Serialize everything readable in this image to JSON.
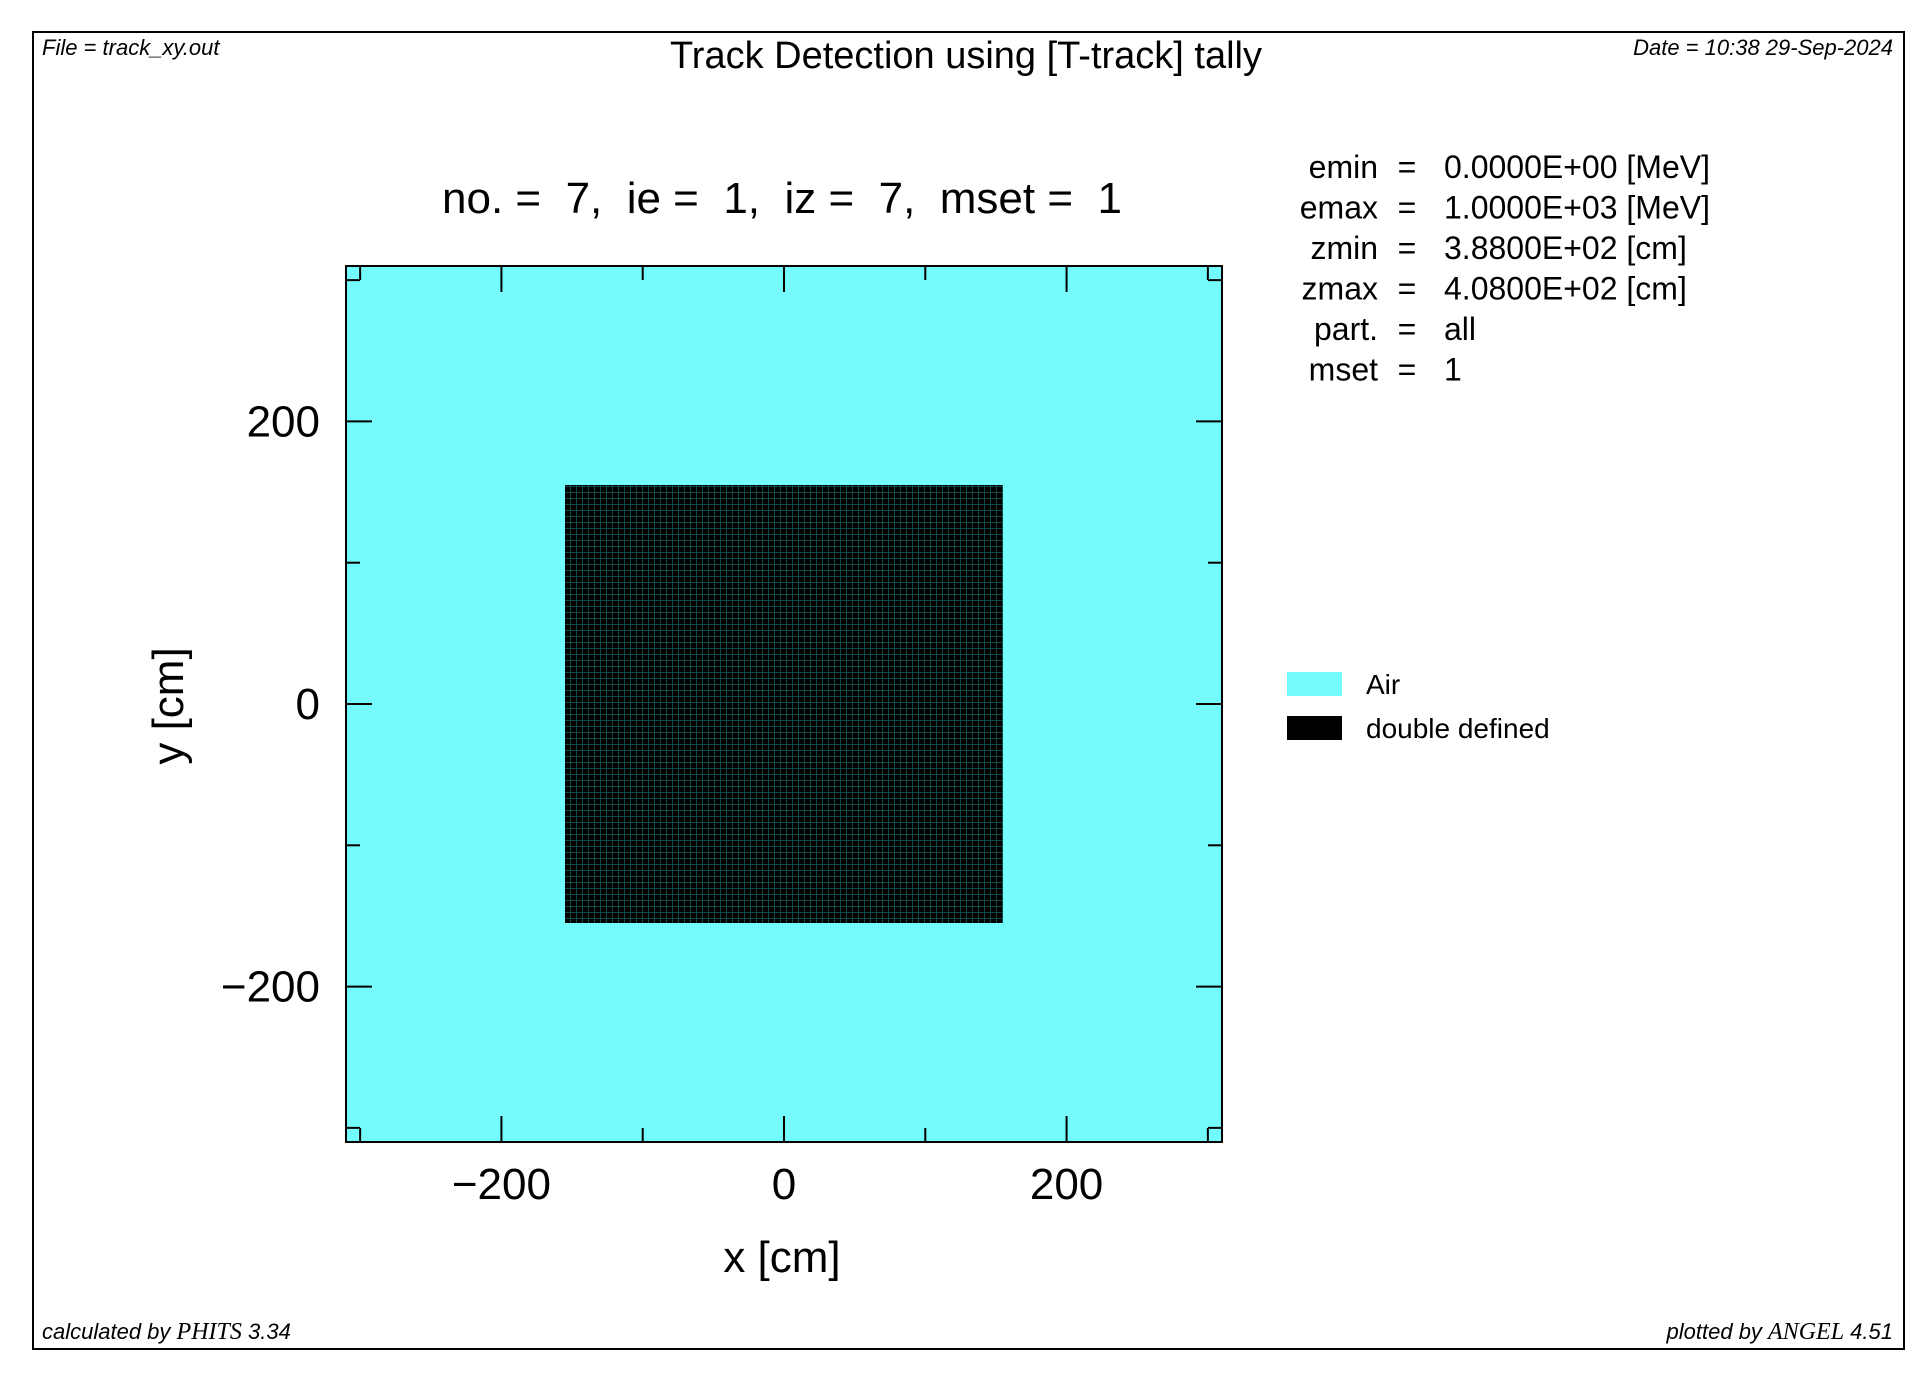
{
  "header": {
    "file": "File = track_xy.out",
    "title": "Track Detection using [T-track] tally",
    "date": "Date = 10:38 29-Sep-2024"
  },
  "subtitle": "no. =  7,  ie =  1,  iz =  7,  mset =  1",
  "params": [
    {
      "name": "emin",
      "eq": "=",
      "value": "0.0000E+00 [MeV]"
    },
    {
      "name": "emax",
      "eq": "=",
      "value": "1.0000E+03 [MeV]"
    },
    {
      "name": "zmin",
      "eq": "=",
      "value": "3.8800E+02 [cm]"
    },
    {
      "name": "zmax",
      "eq": "=",
      "value": "4.0800E+02 [cm]"
    },
    {
      "name": "part.",
      "eq": "=",
      "value": "all"
    },
    {
      "name": "mset",
      "eq": "=",
      "value": "1"
    }
  ],
  "footer": {
    "left_prefix": "calculated by ",
    "left_program": "PHITS",
    "left_version": " 3.34",
    "right_prefix": "plotted by ",
    "right_program": "ANGEL",
    "right_version": " 4.51"
  },
  "colors": {
    "air": "#74fbfb",
    "double_defined": "#000000",
    "double_defined_grid": "#0f4a48"
  },
  "chart_data": {
    "type": "heatmap",
    "title": "no. =  7,  ie =  1,  iz =  7,  mset =  1",
    "xlabel": "x [cm]",
    "ylabel": "y [cm]",
    "xlim": [
      -310,
      310
    ],
    "ylim": [
      -310,
      310
    ],
    "x_ticks": [
      -200,
      0,
      200
    ],
    "y_ticks": [
      -200,
      0,
      200
    ],
    "x_tick_labels": [
      "−200",
      "0",
      "200"
    ],
    "y_tick_labels": [
      "−200",
      "0",
      "200"
    ],
    "minor_tick_step": 100,
    "grid": false,
    "legend_position": "right",
    "regions": [
      {
        "material": "Air",
        "x": [
          -310,
          310
        ],
        "y": [
          -310,
          310
        ]
      },
      {
        "material": "double defined",
        "x": [
          -155,
          155
        ],
        "y": [
          -155,
          155
        ]
      }
    ],
    "legend": [
      {
        "label": "Air",
        "color": "#74fbfb"
      },
      {
        "label": "double defined",
        "color": "#000000"
      }
    ]
  }
}
